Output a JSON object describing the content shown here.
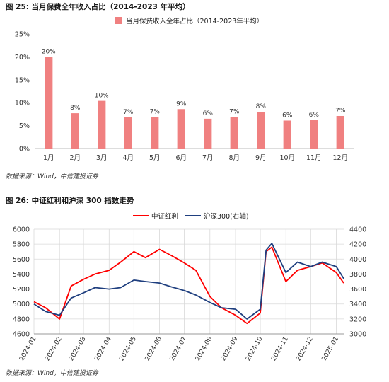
{
  "figures": [
    {
      "title": "图 25: 当月保费全年收入占比（2014-2023 年平均）",
      "source": "数据来源：Wind，中信建投证券"
    },
    {
      "title": "图 26: 中证红利和沪深 300 指数走势",
      "source": "数据来源：Wind，中信建投证券"
    }
  ],
  "chart_data": [
    {
      "type": "bar",
      "title": "",
      "xlabel": "",
      "ylabel": "",
      "legend": "top-center",
      "grid": false,
      "ylim": [
        0,
        25
      ],
      "yticks": [
        "0%",
        "5%",
        "10%",
        "15%",
        "20%",
        "25%"
      ],
      "categories": [
        "1月",
        "2月",
        "3月",
        "4月",
        "5月",
        "6月",
        "7月",
        "8月",
        "9月",
        "10月",
        "11月",
        "12月"
      ],
      "series": [
        {
          "name": "当月保费收入全年占比（2014-2023年平均）",
          "color": "#f08080",
          "values": [
            20,
            7.7,
            10.4,
            6.8,
            6.9,
            8.6,
            6.5,
            6.9,
            8.0,
            6.1,
            6.2,
            7.1
          ],
          "labels": [
            "20%",
            "8%",
            "10%",
            "7%",
            "7%",
            "9%",
            "6%",
            "7%",
            "8%",
            "6%",
            "6%",
            "7%"
          ]
        }
      ]
    },
    {
      "type": "line",
      "title": "",
      "xlabel": "",
      "ylabel": "",
      "legend": "top-center",
      "grid": true,
      "x_ticks": [
        "2024-01",
        "2024-02",
        "2024-03",
        "2024-04",
        "2024-05",
        "2024-06",
        "2024-07",
        "2024-08",
        "2024-09",
        "2024-10",
        "2024-11",
        "2024-12",
        "2025-01"
      ],
      "x": [
        "2024-01",
        "2024-01-15",
        "2024-02",
        "2024-02-15",
        "2024-03",
        "2024-03-15",
        "2024-04",
        "2024-04-15",
        "2024-05",
        "2024-05-15",
        "2024-06",
        "2024-06-15",
        "2024-07",
        "2024-07-15",
        "2024-08",
        "2024-08-15",
        "2024-09",
        "2024-09-15",
        "2024-10",
        "2024-10-08",
        "2024-10-15",
        "2024-11",
        "2024-11-15",
        "2024-12",
        "2024-12-15",
        "2025-01",
        "2025-01-10"
      ],
      "y_left_lim": [
        4600,
        6000
      ],
      "y_left_ticks": [
        4600,
        4800,
        5000,
        5200,
        5400,
        5600,
        5800,
        6000
      ],
      "y_right_lim": [
        3000,
        4400
      ],
      "y_right_ticks": [
        3000,
        3200,
        3400,
        3600,
        3800,
        4000,
        4200,
        4400
      ],
      "series": [
        {
          "name": "中证红利",
          "axis": "left",
          "color": "#ff0000",
          "values": [
            5030,
            4950,
            4800,
            5240,
            5330,
            5400,
            5450,
            5560,
            5700,
            5620,
            5730,
            5650,
            5550,
            5450,
            5100,
            4950,
            4850,
            4740,
            4880,
            5700,
            5760,
            5300,
            5450,
            5500,
            5550,
            5420,
            5280
          ]
        },
        {
          "name": "沪深300(右轴)",
          "axis": "right",
          "color": "#1f3f7f",
          "values": [
            3400,
            3300,
            3250,
            3480,
            3550,
            3620,
            3600,
            3620,
            3720,
            3700,
            3680,
            3630,
            3580,
            3520,
            3420,
            3350,
            3330,
            3200,
            3330,
            4120,
            4210,
            3820,
            3960,
            3900,
            3960,
            3900,
            3740
          ]
        }
      ]
    }
  ]
}
